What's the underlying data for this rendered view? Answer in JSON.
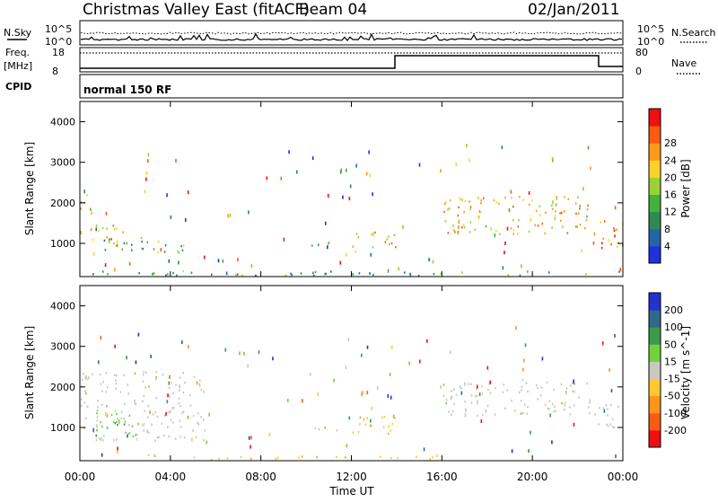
{
  "header": {
    "station": "Christmas Valley East (fitACF)",
    "beam": "Beam 04",
    "date": "02/Jan/2011"
  },
  "top_panels": {
    "nsky_label": "N.Sky",
    "nsearch_label": "N.Search",
    "noise_ticks": [
      "10^5",
      "10^0"
    ],
    "freq_label": "Freq.",
    "freq_unit": "[MHz]",
    "freq_ticks": [
      "18",
      "8"
    ],
    "nave_label": "Nave",
    "nave_ticks": [
      "80",
      "0"
    ],
    "cpid_label": "CPID",
    "cpid_value": "normal 150 RF"
  },
  "x_axis": {
    "label": "Time UT",
    "ticks": [
      "00:00",
      "04:00",
      "08:00",
      "12:00",
      "16:00",
      "20:00",
      "00:00"
    ]
  },
  "colors": {
    "power": [
      "#1e32dc",
      "#2366a8",
      "#2f8a52",
      "#43b23a",
      "#9bd233",
      "#ffd12a",
      "#ff9a1a",
      "#ff5a10",
      "#ee1010"
    ],
    "velocity": [
      "#2233cc",
      "#2e6a8c",
      "#3c9a4a",
      "#72d23c",
      "#c8c8c0",
      "#ffc733",
      "#ff941e",
      "#ff5a14",
      "#ee1010"
    ],
    "ground_scatter": "#c8c8c0"
  },
  "chart_data": [
    {
      "type": "heatmap",
      "panel": "power",
      "ylabel": "Slant Range [km]",
      "ylim": [
        180,
        4500
      ],
      "yticks": [
        "1000",
        "2000",
        "3000",
        "4000"
      ],
      "xlim_hours": [
        0,
        24
      ],
      "colorbar_label": "Power [dB]",
      "colorbar_ticks": [
        "4",
        "8",
        "12",
        "16",
        "20",
        "24",
        "28"
      ],
      "colorbar_range": [
        0,
        30
      ],
      "regions": [
        {
          "t0": 0.0,
          "t1": 0.5,
          "r0": 1700,
          "r1": 2500,
          "level": 0.6
        },
        {
          "t0": 0.3,
          "t1": 2.0,
          "r0": 950,
          "r1": 1500,
          "level": 0.55
        },
        {
          "t0": 1.0,
          "t1": 4.6,
          "r0": 780,
          "r1": 1180,
          "level": 0.4
        },
        {
          "t0": 3.2,
          "t1": 5.8,
          "r0": 250,
          "r1": 350,
          "level": 0.45
        },
        {
          "t0": 10.2,
          "t1": 11.4,
          "r0": 850,
          "r1": 1050,
          "level": 0.5
        },
        {
          "t0": 12.0,
          "t1": 14.0,
          "r0": 820,
          "r1": 1300,
          "level": 0.6
        },
        {
          "t0": 16.0,
          "t1": 22.5,
          "r0": 1250,
          "r1": 2200,
          "level": 0.65
        },
        {
          "t0": 22.7,
          "t1": 24.0,
          "r0": 900,
          "r1": 1600,
          "level": 0.85
        },
        {
          "t0": 0.5,
          "t1": 24.0,
          "r0": 220,
          "r1": 330,
          "level": 0.3
        }
      ]
    },
    {
      "type": "heatmap",
      "panel": "velocity",
      "ylabel": "Slant Range [km]",
      "ylim": [
        180,
        4500
      ],
      "yticks": [
        "1000",
        "2000",
        "3000",
        "4000"
      ],
      "xlim_hours": [
        0,
        24
      ],
      "colorbar_label": "Velocity [m s^-1]",
      "colorbar_ticks": [
        "200",
        "100",
        "50",
        "15",
        "-15",
        "-50",
        "-100",
        "-200"
      ],
      "colorbar_range": [
        -250,
        250
      ],
      "regions": [
        {
          "t0": 0.0,
          "t1": 5.5,
          "r0": 700,
          "r1": 2400,
          "kind": "ground"
        },
        {
          "t0": 0.6,
          "t1": 2.6,
          "r0": 750,
          "r1": 1400,
          "kind": "pos"
        },
        {
          "t0": 3.0,
          "t1": 5.5,
          "r0": 250,
          "r1": 350,
          "kind": "ground"
        },
        {
          "t0": 5.6,
          "t1": 16.0,
          "r0": 220,
          "r1": 330,
          "kind": "neg"
        },
        {
          "t0": 10.2,
          "t1": 11.4,
          "r0": 850,
          "r1": 1050,
          "kind": "ground"
        },
        {
          "t0": 12.0,
          "t1": 14.0,
          "r0": 820,
          "r1": 1300,
          "kind": "neg"
        },
        {
          "t0": 16.0,
          "t1": 22.7,
          "r0": 1300,
          "r1": 2200,
          "kind": "ground"
        },
        {
          "t0": 22.7,
          "t1": 24.0,
          "r0": 900,
          "r1": 1600,
          "kind": "ground"
        }
      ]
    }
  ]
}
